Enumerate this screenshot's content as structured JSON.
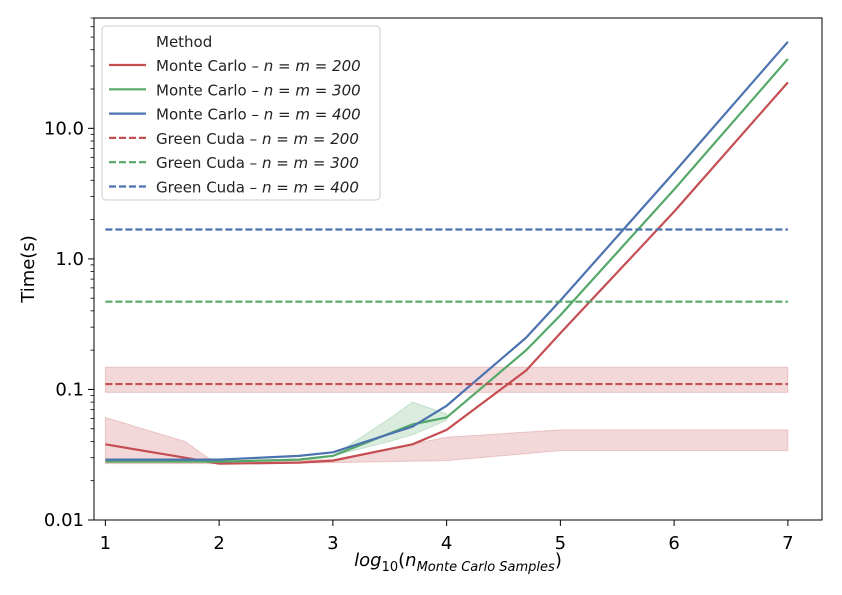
{
  "chart_data": {
    "type": "line",
    "title": "",
    "xlabel_prefix": "log",
    "xlabel_sub": "10",
    "xlabel_n": "n",
    "xlabel_nsub": "Monte Carlo Samples",
    "ylabel": "Time(s)",
    "xlim": [
      0.9,
      7.3
    ],
    "ylim": [
      0.01,
      70
    ],
    "yscale": "log",
    "grid": false,
    "legend_position": "top-left",
    "legend_title": "Method",
    "x_ticks": [
      1,
      2,
      3,
      4,
      5,
      6,
      7
    ],
    "x_tick_labels": [
      "1",
      "2",
      "3",
      "4",
      "5",
      "6",
      "7"
    ],
    "y_ticks": [
      0.01,
      0.1,
      1.0,
      10.0
    ],
    "y_tick_labels": [
      "0.01",
      "0.1",
      "1.0",
      "10.0"
    ],
    "x": [
      1,
      1.7,
      2,
      2.7,
      3,
      3.7,
      4,
      4.7,
      5,
      6,
      7
    ],
    "series": [
      {
        "name": "Monte Carlo – n = m = 200",
        "name_prefix": "Monte Carlo – ",
        "name_math": "n = m = 200",
        "color": "#c44e52",
        "dash": "solid",
        "values": [
          0.038,
          0.03,
          0.027,
          0.0275,
          0.0285,
          0.038,
          0.049,
          0.14,
          0.27,
          2.3,
          22.5
        ],
        "band": {
          "x": [
            1,
            1.7,
            1.9,
            2,
            3,
            4,
            5,
            6,
            7
          ],
          "lower": [
            0.027,
            0.027,
            0.027,
            0.027,
            0.0275,
            0.0285,
            0.034,
            0.034,
            0.034
          ],
          "upper": [
            0.061,
            0.04,
            0.03,
            0.028,
            0.029,
            0.043,
            0.049,
            0.049,
            0.049
          ]
        }
      },
      {
        "name": "Monte Carlo – n = m = 300",
        "name_prefix": "Monte Carlo – ",
        "name_math": "n = m = 300",
        "color": "#55a868",
        "dash": "solid",
        "values": [
          0.028,
          0.028,
          0.028,
          0.029,
          0.031,
          0.054,
          0.061,
          0.2,
          0.37,
          3.4,
          34
        ],
        "band": {
          "x": [
            3,
            3.5,
            3.7,
            4
          ],
          "lower": [
            0.031,
            0.04,
            0.045,
            0.058
          ],
          "upper": [
            0.031,
            0.06,
            0.08,
            0.065
          ]
        }
      },
      {
        "name": "Monte Carlo – n = m = 400",
        "name_prefix": "Monte Carlo – ",
        "name_math": "n = m = 400",
        "color": "#4c72b0",
        "dash": "solid",
        "values": [
          0.029,
          0.029,
          0.029,
          0.031,
          0.033,
          0.052,
          0.075,
          0.25,
          0.48,
          4.6,
          46
        ]
      },
      {
        "name": "Green Cuda – n = m = 200",
        "name_prefix": "Green Cuda – ",
        "name_math": "n = m = 200",
        "color": "#c44e52",
        "dash": "dashed",
        "values": [
          0.11,
          0.11,
          0.11,
          0.11,
          0.11,
          0.11,
          0.11,
          0.11,
          0.11,
          0.11,
          0.11
        ],
        "band": {
          "x": [
            1,
            7
          ],
          "lower": [
            0.095,
            0.095
          ],
          "upper": [
            0.148,
            0.148
          ]
        }
      },
      {
        "name": "Green Cuda – n = m = 300",
        "name_prefix": "Green Cuda – ",
        "name_math": "n = m = 300",
        "color": "#55a868",
        "dash": "dashed",
        "values": [
          0.47,
          0.47,
          0.47,
          0.47,
          0.47,
          0.47,
          0.47,
          0.47,
          0.47,
          0.47,
          0.47
        ]
      },
      {
        "name": "Green Cuda – n = m = 400",
        "name_prefix": "Green Cuda – ",
        "name_math": "n = m = 400",
        "color": "#4c72b0",
        "dash": "dashed",
        "values": [
          1.68,
          1.68,
          1.68,
          1.68,
          1.68,
          1.68,
          1.68,
          1.68,
          1.68,
          1.68,
          1.68
        ]
      }
    ]
  }
}
